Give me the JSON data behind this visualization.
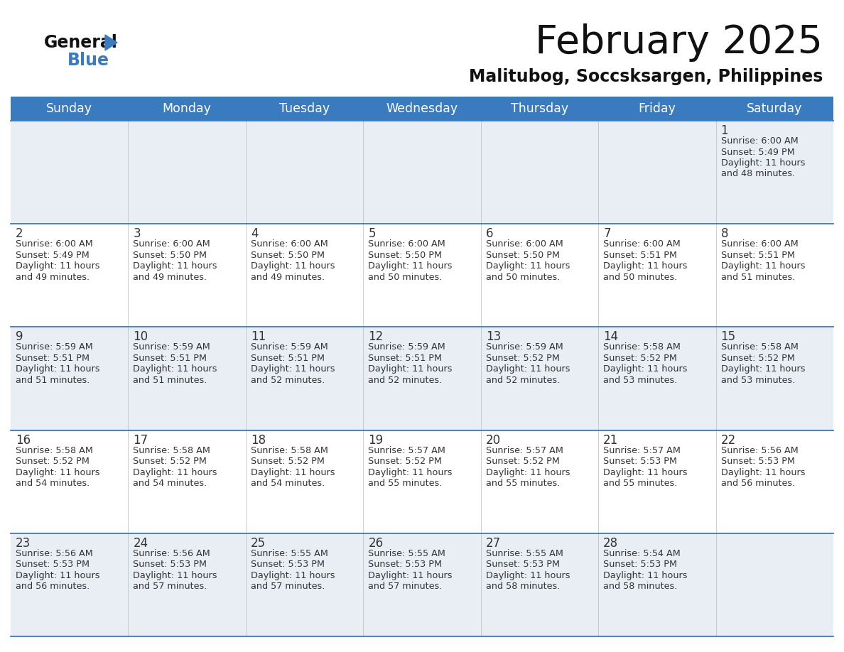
{
  "title": "February 2025",
  "subtitle": "Malitubog, Soccsksargen, Philippines",
  "header_bg": "#3a7abf",
  "header_text": "#ffffff",
  "day_names": [
    "Sunday",
    "Monday",
    "Tuesday",
    "Wednesday",
    "Thursday",
    "Friday",
    "Saturday"
  ],
  "row_bg_light": "#e8eef4",
  "row_bg_white": "#ffffff",
  "cell_text_color": "#333333",
  "date_text_color": "#333333",
  "grid_line_color": "#3a7abf",
  "background_color": "#ffffff",
  "logo_general_color": "#111111",
  "logo_blue_color": "#3a7abf",
  "calendar_data": [
    [
      {
        "date": "",
        "sunrise": "",
        "sunset": "",
        "daylight_line1": "",
        "daylight_line2": ""
      },
      {
        "date": "",
        "sunrise": "",
        "sunset": "",
        "daylight_line1": "",
        "daylight_line2": ""
      },
      {
        "date": "",
        "sunrise": "",
        "sunset": "",
        "daylight_line1": "",
        "daylight_line2": ""
      },
      {
        "date": "",
        "sunrise": "",
        "sunset": "",
        "daylight_line1": "",
        "daylight_line2": ""
      },
      {
        "date": "",
        "sunrise": "",
        "sunset": "",
        "daylight_line1": "",
        "daylight_line2": ""
      },
      {
        "date": "",
        "sunrise": "",
        "sunset": "",
        "daylight_line1": "",
        "daylight_line2": ""
      },
      {
        "date": "1",
        "sunrise": "Sunrise: 6:00 AM",
        "sunset": "Sunset: 5:49 PM",
        "daylight_line1": "Daylight: 11 hours",
        "daylight_line2": "and 48 minutes."
      }
    ],
    [
      {
        "date": "2",
        "sunrise": "Sunrise: 6:00 AM",
        "sunset": "Sunset: 5:49 PM",
        "daylight_line1": "Daylight: 11 hours",
        "daylight_line2": "and 49 minutes."
      },
      {
        "date": "3",
        "sunrise": "Sunrise: 6:00 AM",
        "sunset": "Sunset: 5:50 PM",
        "daylight_line1": "Daylight: 11 hours",
        "daylight_line2": "and 49 minutes."
      },
      {
        "date": "4",
        "sunrise": "Sunrise: 6:00 AM",
        "sunset": "Sunset: 5:50 PM",
        "daylight_line1": "Daylight: 11 hours",
        "daylight_line2": "and 49 minutes."
      },
      {
        "date": "5",
        "sunrise": "Sunrise: 6:00 AM",
        "sunset": "Sunset: 5:50 PM",
        "daylight_line1": "Daylight: 11 hours",
        "daylight_line2": "and 50 minutes."
      },
      {
        "date": "6",
        "sunrise": "Sunrise: 6:00 AM",
        "sunset": "Sunset: 5:50 PM",
        "daylight_line1": "Daylight: 11 hours",
        "daylight_line2": "and 50 minutes."
      },
      {
        "date": "7",
        "sunrise": "Sunrise: 6:00 AM",
        "sunset": "Sunset: 5:51 PM",
        "daylight_line1": "Daylight: 11 hours",
        "daylight_line2": "and 50 minutes."
      },
      {
        "date": "8",
        "sunrise": "Sunrise: 6:00 AM",
        "sunset": "Sunset: 5:51 PM",
        "daylight_line1": "Daylight: 11 hours",
        "daylight_line2": "and 51 minutes."
      }
    ],
    [
      {
        "date": "9",
        "sunrise": "Sunrise: 5:59 AM",
        "sunset": "Sunset: 5:51 PM",
        "daylight_line1": "Daylight: 11 hours",
        "daylight_line2": "and 51 minutes."
      },
      {
        "date": "10",
        "sunrise": "Sunrise: 5:59 AM",
        "sunset": "Sunset: 5:51 PM",
        "daylight_line1": "Daylight: 11 hours",
        "daylight_line2": "and 51 minutes."
      },
      {
        "date": "11",
        "sunrise": "Sunrise: 5:59 AM",
        "sunset": "Sunset: 5:51 PM",
        "daylight_line1": "Daylight: 11 hours",
        "daylight_line2": "and 52 minutes."
      },
      {
        "date": "12",
        "sunrise": "Sunrise: 5:59 AM",
        "sunset": "Sunset: 5:51 PM",
        "daylight_line1": "Daylight: 11 hours",
        "daylight_line2": "and 52 minutes."
      },
      {
        "date": "13",
        "sunrise": "Sunrise: 5:59 AM",
        "sunset": "Sunset: 5:52 PM",
        "daylight_line1": "Daylight: 11 hours",
        "daylight_line2": "and 52 minutes."
      },
      {
        "date": "14",
        "sunrise": "Sunrise: 5:58 AM",
        "sunset": "Sunset: 5:52 PM",
        "daylight_line1": "Daylight: 11 hours",
        "daylight_line2": "and 53 minutes."
      },
      {
        "date": "15",
        "sunrise": "Sunrise: 5:58 AM",
        "sunset": "Sunset: 5:52 PM",
        "daylight_line1": "Daylight: 11 hours",
        "daylight_line2": "and 53 minutes."
      }
    ],
    [
      {
        "date": "16",
        "sunrise": "Sunrise: 5:58 AM",
        "sunset": "Sunset: 5:52 PM",
        "daylight_line1": "Daylight: 11 hours",
        "daylight_line2": "and 54 minutes."
      },
      {
        "date": "17",
        "sunrise": "Sunrise: 5:58 AM",
        "sunset": "Sunset: 5:52 PM",
        "daylight_line1": "Daylight: 11 hours",
        "daylight_line2": "and 54 minutes."
      },
      {
        "date": "18",
        "sunrise": "Sunrise: 5:58 AM",
        "sunset": "Sunset: 5:52 PM",
        "daylight_line1": "Daylight: 11 hours",
        "daylight_line2": "and 54 minutes."
      },
      {
        "date": "19",
        "sunrise": "Sunrise: 5:57 AM",
        "sunset": "Sunset: 5:52 PM",
        "daylight_line1": "Daylight: 11 hours",
        "daylight_line2": "and 55 minutes."
      },
      {
        "date": "20",
        "sunrise": "Sunrise: 5:57 AM",
        "sunset": "Sunset: 5:52 PM",
        "daylight_line1": "Daylight: 11 hours",
        "daylight_line2": "and 55 minutes."
      },
      {
        "date": "21",
        "sunrise": "Sunrise: 5:57 AM",
        "sunset": "Sunset: 5:53 PM",
        "daylight_line1": "Daylight: 11 hours",
        "daylight_line2": "and 55 minutes."
      },
      {
        "date": "22",
        "sunrise": "Sunrise: 5:56 AM",
        "sunset": "Sunset: 5:53 PM",
        "daylight_line1": "Daylight: 11 hours",
        "daylight_line2": "and 56 minutes."
      }
    ],
    [
      {
        "date": "23",
        "sunrise": "Sunrise: 5:56 AM",
        "sunset": "Sunset: 5:53 PM",
        "daylight_line1": "Daylight: 11 hours",
        "daylight_line2": "and 56 minutes."
      },
      {
        "date": "24",
        "sunrise": "Sunrise: 5:56 AM",
        "sunset": "Sunset: 5:53 PM",
        "daylight_line1": "Daylight: 11 hours",
        "daylight_line2": "and 57 minutes."
      },
      {
        "date": "25",
        "sunrise": "Sunrise: 5:55 AM",
        "sunset": "Sunset: 5:53 PM",
        "daylight_line1": "Daylight: 11 hours",
        "daylight_line2": "and 57 minutes."
      },
      {
        "date": "26",
        "sunrise": "Sunrise: 5:55 AM",
        "sunset": "Sunset: 5:53 PM",
        "daylight_line1": "Daylight: 11 hours",
        "daylight_line2": "and 57 minutes."
      },
      {
        "date": "27",
        "sunrise": "Sunrise: 5:55 AM",
        "sunset": "Sunset: 5:53 PM",
        "daylight_line1": "Daylight: 11 hours",
        "daylight_line2": "and 58 minutes."
      },
      {
        "date": "28",
        "sunrise": "Sunrise: 5:54 AM",
        "sunset": "Sunset: 5:53 PM",
        "daylight_line1": "Daylight: 11 hours",
        "daylight_line2": "and 58 minutes."
      },
      {
        "date": "",
        "sunrise": "",
        "sunset": "",
        "daylight_line1": "",
        "daylight_line2": ""
      }
    ]
  ]
}
